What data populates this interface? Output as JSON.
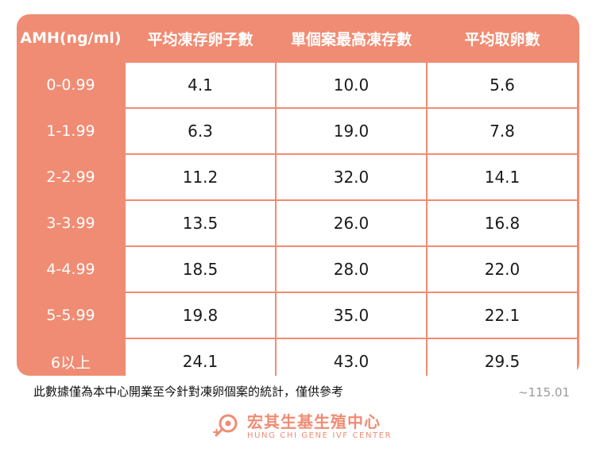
{
  "table": {
    "headers": [
      "AMH(ng/ml)",
      "平均凍存卵子數",
      "單個案最高凍存數",
      "平均取卵數"
    ],
    "rows": [
      {
        "label": "0-0.99",
        "values": [
          "4.1",
          "10.0",
          "5.6"
        ]
      },
      {
        "label": "1-1.99",
        "values": [
          "6.3",
          "19.0",
          "7.8"
        ]
      },
      {
        "label": "2-2.99",
        "values": [
          "11.2",
          "32.0",
          "14.1"
        ]
      },
      {
        "label": "3-3.99",
        "values": [
          "13.5",
          "26.0",
          "16.8"
        ]
      },
      {
        "label": "4-4.99",
        "values": [
          "18.5",
          "28.0",
          "22.0"
        ]
      },
      {
        "label": "5-5.99",
        "values": [
          "19.8",
          "35.0",
          "22.1"
        ]
      },
      {
        "label": "6以上",
        "values": [
          "24.1",
          "43.0",
          "29.5"
        ]
      }
    ]
  },
  "footer": {
    "note": "此數據僅為本中心開業至今針對凍卵個案的統計，僅供參考",
    "version": "~115.01"
  },
  "logo": {
    "name_cn": "宏其生基生殖中心",
    "name_en": "HUNG CHI GENE IVF CENTER",
    "icon": "fertility-logo-icon"
  },
  "colors": {
    "accent": "#F08C73",
    "cell_bg": "#FFFFFF",
    "text": "#1A1A1A"
  }
}
